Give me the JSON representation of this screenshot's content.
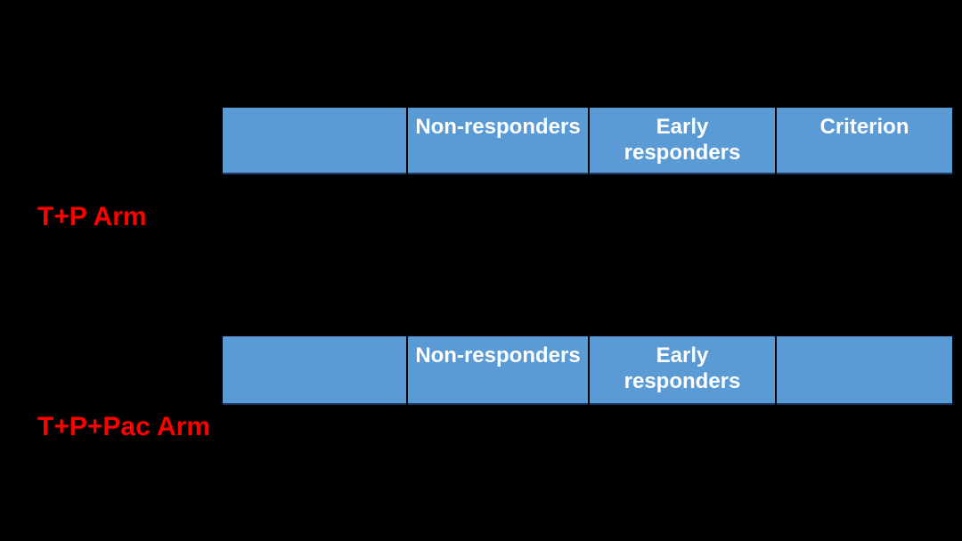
{
  "slide": {
    "background_color": "#000000"
  },
  "colors": {
    "header_fill": "#5B9BD5",
    "header_text": "#FFFFFF",
    "arm_label": "#FF0000",
    "cell_separator": "#000000",
    "cell_bottom_border": "#1F3864"
  },
  "arms": [
    {
      "label": "T+P Arm",
      "header_cells": [
        "",
        "Non-responders",
        "Early\nresponders",
        "Criterion"
      ]
    },
    {
      "label": "T+P+Pac Arm",
      "header_cells": [
        "",
        "Non-responders",
        "Early\nresponders",
        ""
      ]
    }
  ]
}
